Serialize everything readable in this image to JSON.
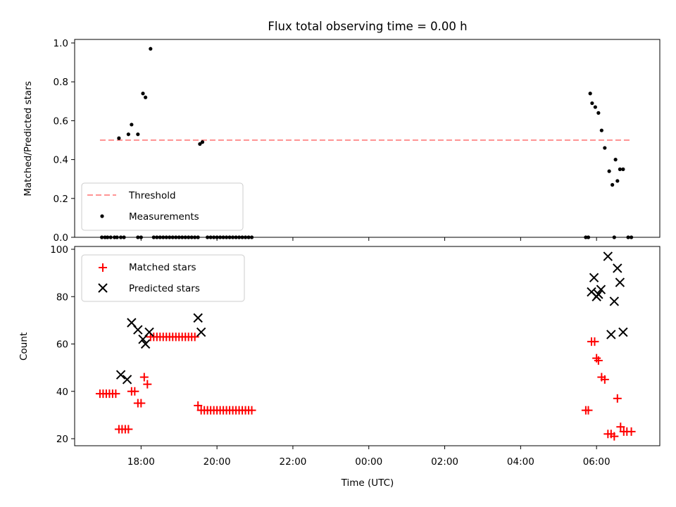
{
  "chart_data": [
    {
      "type": "scatter",
      "title": "Flux total observing time = 0.00 h",
      "ylabel": "Matched/Predicted stars",
      "xlabel": "",
      "ylim": [
        0,
        1.0
      ],
      "yticks": [
        "0.0",
        "0.2",
        "0.4",
        "0.6",
        "0.8",
        "1.0"
      ],
      "grid": false,
      "legend_position": "lower-left",
      "threshold": {
        "name": "Threshold",
        "value": 0.5,
        "x_range": [
          "16:55",
          "06:55"
        ],
        "color": "#ff7070",
        "style": "dashed"
      },
      "series": [
        {
          "name": "Measurements",
          "color": "#000000",
          "marker": "dot",
          "x": [
            "17:25",
            "17:40",
            "17:45",
            "17:55",
            "18:03",
            "18:07",
            "18:15",
            "19:33",
            "19:37",
            "05:50",
            "05:53",
            "05:58",
            "06:03",
            "06:08",
            "06:13",
            "06:20",
            "06:25",
            "06:30",
            "06:33",
            "06:37",
            "06:42",
            "16:58",
            "17:03",
            "17:07",
            "17:12",
            "17:18",
            "17:22",
            "17:28",
            "17:33",
            "17:55",
            "18:00",
            "18:20",
            "18:25",
            "18:30",
            "18:35",
            "18:40",
            "18:45",
            "18:50",
            "18:55",
            "19:00",
            "19:05",
            "19:10",
            "19:15",
            "19:20",
            "19:25",
            "19:30",
            "19:45",
            "19:50",
            "19:55",
            "20:00",
            "20:05",
            "20:10",
            "20:15",
            "20:20",
            "20:25",
            "20:30",
            "20:35",
            "20:40",
            "20:45",
            "20:50",
            "20:55",
            "05:43",
            "05:47",
            "06:28",
            "06:50",
            "06:55"
          ],
          "y": [
            0.51,
            0.53,
            0.58,
            0.53,
            0.74,
            0.72,
            0.97,
            0.48,
            0.49,
            0.74,
            0.69,
            0.67,
            0.64,
            0.55,
            0.46,
            0.34,
            0.27,
            0.4,
            0.29,
            0.35,
            0.35,
            0,
            0,
            0,
            0,
            0,
            0,
            0,
            0,
            0,
            0,
            0,
            0,
            0,
            0,
            0,
            0,
            0,
            0,
            0,
            0,
            0,
            0,
            0,
            0,
            0,
            0,
            0,
            0,
            0,
            0,
            0,
            0,
            0,
            0,
            0,
            0,
            0,
            0,
            0,
            0,
            0,
            0,
            0,
            0,
            0
          ]
        }
      ]
    },
    {
      "type": "scatter",
      "title": "",
      "ylabel": "Count",
      "xlabel": "Time (UTC)",
      "ylim": [
        20,
        100
      ],
      "yticks": [
        "20",
        "40",
        "60",
        "80",
        "100"
      ],
      "xticks": [
        "18:00",
        "20:00",
        "22:00",
        "00:00",
        "02:00",
        "04:00",
        "06:00"
      ],
      "x_range": [
        "16:15",
        "07:40"
      ],
      "grid": false,
      "legend_position": "upper-left",
      "series": [
        {
          "name": "Matched stars",
          "color": "#ff0000",
          "marker": "plus",
          "x": [
            "16:55",
            "17:00",
            "17:05",
            "17:10",
            "17:15",
            "17:20",
            "17:25",
            "17:30",
            "17:35",
            "17:40",
            "17:45",
            "17:50",
            "17:55",
            "18:00",
            "18:05",
            "18:10",
            "18:15",
            "18:20",
            "18:25",
            "18:30",
            "18:35",
            "18:40",
            "18:45",
            "18:50",
            "18:55",
            "19:00",
            "19:05",
            "19:10",
            "19:15",
            "19:20",
            "19:25",
            "19:30",
            "19:35",
            "19:40",
            "19:45",
            "19:50",
            "19:55",
            "20:00",
            "20:05",
            "20:10",
            "20:15",
            "20:20",
            "20:25",
            "20:30",
            "20:35",
            "20:40",
            "20:45",
            "20:50",
            "20:55",
            "05:43",
            "05:47",
            "05:52",
            "05:57",
            "06:00",
            "06:03",
            "06:08",
            "06:13",
            "06:18",
            "06:23",
            "06:28",
            "06:33",
            "06:38",
            "06:43",
            "06:48",
            "06:55"
          ],
          "y": [
            39,
            39,
            39,
            39,
            39,
            39,
            24,
            24,
            24,
            24,
            40,
            40,
            35,
            35,
            46,
            43,
            63,
            63,
            63,
            63,
            63,
            63,
            63,
            63,
            63,
            63,
            63,
            63,
            63,
            63,
            63,
            34,
            32,
            32,
            32,
            32,
            32,
            32,
            32,
            32,
            32,
            32,
            32,
            32,
            32,
            32,
            32,
            32,
            32,
            32,
            32,
            61,
            61,
            54,
            53,
            46,
            45,
            22,
            22,
            21,
            37,
            25,
            23,
            23,
            23
          ]
        },
        {
          "name": "Predicted stars",
          "color": "#000000",
          "marker": "x",
          "x": [
            "17:28",
            "17:38",
            "17:45",
            "17:55",
            "18:03",
            "18:07",
            "18:13",
            "19:30",
            "19:35",
            "05:52",
            "05:56",
            "06:00",
            "06:03",
            "06:07",
            "06:18",
            "06:23",
            "06:28",
            "06:33",
            "06:37",
            "06:42"
          ],
          "y": [
            47,
            45,
            69,
            66,
            62,
            60,
            65,
            71,
            65,
            82,
            88,
            80,
            81,
            83,
            97,
            64,
            78,
            92,
            86,
            65
          ]
        }
      ]
    }
  ]
}
